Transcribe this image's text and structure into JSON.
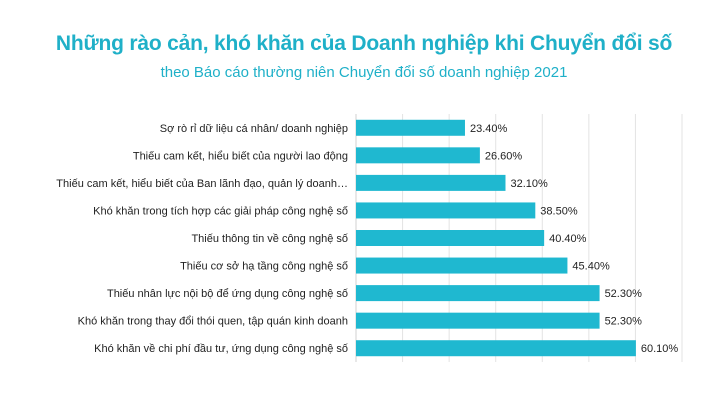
{
  "title": "Những rào cản, khó khăn của Doanh nghiệp khi Chuyển đổi số",
  "subtitle": "theo Báo cáo thường niên Chuyển đổi số doanh nghiệp 2021",
  "colors": {
    "bar": "#1fb8d0",
    "title": "#1fb0c8",
    "grid": "#e3e3e3"
  },
  "chart_data": {
    "type": "bar",
    "orientation": "horizontal",
    "categories": [
      "Sợ rò rỉ dữ liệu cá nhân/ doanh nghiệp",
      "Thiếu cam kết, hiểu biết của người lao động",
      "Thiếu cam kết, hiểu biết của Ban lãnh đạo, quản lý doanh…",
      "Khó khăn trong tích hợp các giải pháp công nghệ số",
      "Thiếu thông tin về công nghệ số",
      "Thiếu cơ sở hạ tầng công nghệ số",
      "Thiếu nhân lực nội bộ để ứng dụng  công nghệ số",
      "Khó khăn trong thay đổi thói quen, tập quán kinh doanh",
      "Khó khăn về chi phí đầu tư, ứng dụng công nghệ số"
    ],
    "values": [
      23.4,
      26.6,
      32.1,
      38.5,
      40.4,
      45.4,
      52.3,
      52.3,
      60.1
    ],
    "value_labels": [
      "23.40%",
      "26.60%",
      "32.10%",
      "38.50%",
      "40.40%",
      "45.40%",
      "52.30%",
      "52.30%",
      "60.10%"
    ],
    "xlim": [
      0,
      70
    ],
    "grid": true,
    "legend": "none"
  }
}
